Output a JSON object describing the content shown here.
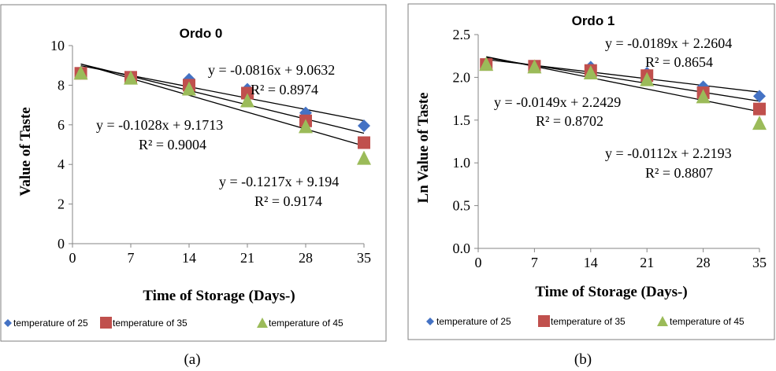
{
  "captions": [
    "(a)",
    "(b)"
  ],
  "legend_labels": [
    "temperature of 25",
    "temperature of  35",
    "temperature of  45"
  ],
  "colors": {
    "series1": "#4472C4",
    "series2": "#C0504D",
    "series3": "#9BBB59",
    "trendline": "#000000"
  },
  "chart_data": [
    {
      "type": "scatter",
      "title": "Ordo 0",
      "xlabel": "Time of Storage (Days-)",
      "ylabel": "Value of Taste",
      "xlim": [
        0,
        35
      ],
      "ylim": [
        0,
        10
      ],
      "x_ticks": [
        0,
        7,
        14,
        21,
        28,
        35
      ],
      "y_ticks": [
        0,
        2,
        4,
        6,
        8,
        10
      ],
      "y_tick_labels": [
        "0",
        "2",
        "4",
        "6",
        "8",
        "10"
      ],
      "grid": false,
      "legend_position": "bottom",
      "series": [
        {
          "name": "temperature of 25",
          "marker": "diamond",
          "x": [
            1,
            7,
            14,
            21,
            28,
            35
          ],
          "y": [
            8.6,
            8.4,
            8.3,
            7.8,
            6.6,
            5.95
          ]
        },
        {
          "name": "temperature of  35",
          "marker": "square",
          "x": [
            1,
            7,
            14,
            21,
            28,
            35
          ],
          "y": [
            8.6,
            8.4,
            8.0,
            7.6,
            6.2,
            5.1
          ]
        },
        {
          "name": "temperature of  45",
          "marker": "triangle",
          "x": [
            1,
            7,
            14,
            21,
            28,
            35
          ],
          "y": [
            8.6,
            8.35,
            7.8,
            7.2,
            5.9,
            4.3
          ]
        }
      ],
      "trendlines": [
        {
          "slope": -0.0816,
          "intercept": 9.0632,
          "equation": "y = -0.0816x + 9.0632",
          "r2": "R² = 0.8974"
        },
        {
          "slope": -0.1028,
          "intercept": 9.1713,
          "equation": "y = -0.1028x + 9.1713",
          "r2": "R² = 0.9004"
        },
        {
          "slope": -0.1217,
          "intercept": 9.194,
          "equation": "y = -0.1217x + 9.194",
          "r2": "R² = 0.9174"
        }
      ]
    },
    {
      "type": "scatter",
      "title": "Ordo 1",
      "xlabel": "Time of Storage (Days-)",
      "ylabel": "Ln Value of Taste",
      "xlim": [
        0,
        35
      ],
      "ylim": [
        0,
        2.5
      ],
      "x_ticks": [
        0,
        7,
        14,
        21,
        28,
        35
      ],
      "y_ticks": [
        0,
        0.5,
        1.0,
        1.5,
        2.0,
        2.5
      ],
      "y_tick_labels": [
        "0.0",
        "0.5",
        "1.0",
        "1.5",
        "2.0",
        "2.5"
      ],
      "grid": false,
      "legend_position": "bottom",
      "series": [
        {
          "name": "temperature of 25",
          "marker": "diamond",
          "x": [
            1,
            7,
            14,
            21,
            28,
            35
          ],
          "y": [
            2.15,
            2.13,
            2.12,
            2.05,
            1.89,
            1.78
          ]
        },
        {
          "name": "temperature of  35",
          "marker": "square",
          "x": [
            1,
            7,
            14,
            21,
            28,
            35
          ],
          "y": [
            2.15,
            2.13,
            2.08,
            2.02,
            1.82,
            1.63
          ]
        },
        {
          "name": "temperature of  45",
          "marker": "triangle",
          "x": [
            1,
            7,
            14,
            21,
            28,
            35
          ],
          "y": [
            2.15,
            2.12,
            2.05,
            1.97,
            1.77,
            1.46
          ]
        }
      ],
      "trendlines": [
        {
          "slope": -0.0189,
          "intercept": 2.2604,
          "equation": "y = -0.0189x + 2.2604",
          "r2": "R² = 0.8654"
        },
        {
          "slope": -0.0149,
          "intercept": 2.2429,
          "equation": "y = -0.0149x + 2.2429",
          "r2": "R² = 0.8702"
        },
        {
          "slope": -0.0112,
          "intercept": 2.2193,
          "equation": "y = -0.0112x + 2.2193",
          "r2": "R² = 0.8807"
        }
      ]
    }
  ]
}
